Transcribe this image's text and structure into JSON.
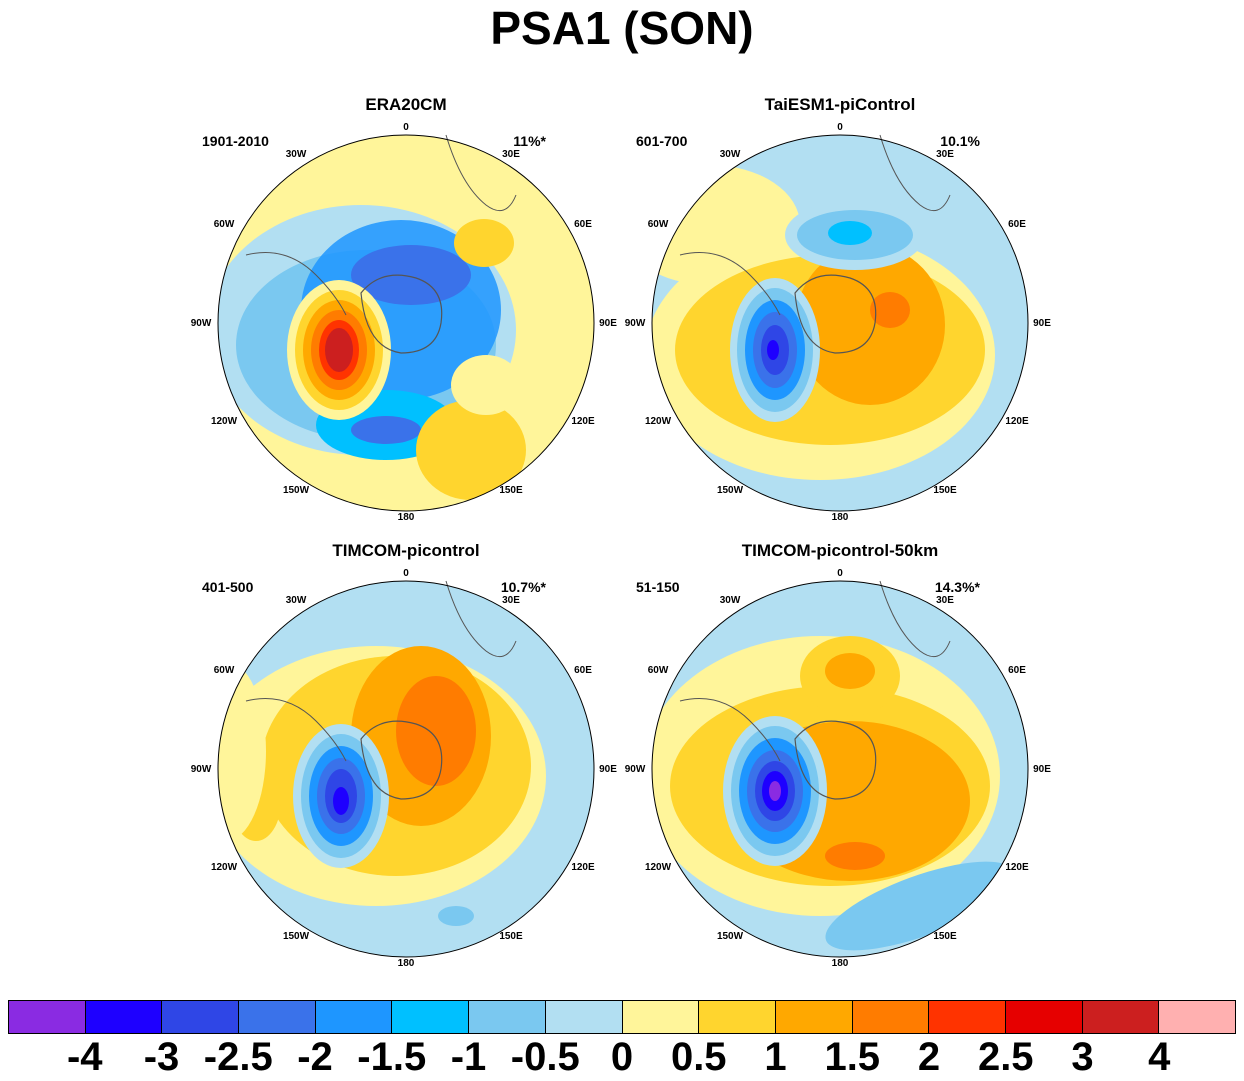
{
  "title": "PSA1 (SON)",
  "panels": [
    {
      "name": "ERA20CM",
      "period": "1901-2010",
      "variance": "11%*"
    },
    {
      "name": "TaiESM1-piControl",
      "period": "601-700",
      "variance": "10.1%"
    },
    {
      "name": "TIMCOM-picontrol",
      "period": "401-500",
      "variance": "10.7%*"
    },
    {
      "name": "TIMCOM-picontrol-50km",
      "period": "51-150",
      "variance": "14.3%*"
    }
  ],
  "longitude_labels": {
    "n0": "0",
    "e30": "30E",
    "e60": "60E",
    "e90": "90E",
    "e120": "120E",
    "e150": "150E",
    "s180": "180",
    "w150": "150W",
    "w120": "120W",
    "w90": "90W",
    "w60": "60W",
    "w30": "30W"
  },
  "colorbar": {
    "colors": [
      "#8a2be2",
      "#1e00ff",
      "#2f46e6",
      "#3a72ea",
      "#1e96ff",
      "#00c0ff",
      "#7ac8f0",
      "#b2dff2",
      "#fff59a",
      "#ffd52e",
      "#ffa800",
      "#ff7c00",
      "#ff3300",
      "#e60000",
      "#cc1f1f",
      "#ffb0b0"
    ],
    "labels": [
      "-4",
      "-3",
      "-2.5",
      "-2",
      "-1.5",
      "-1",
      "-0.5",
      "0",
      "0.5",
      "1",
      "1.5",
      "2",
      "2.5",
      "3",
      "4"
    ]
  }
}
